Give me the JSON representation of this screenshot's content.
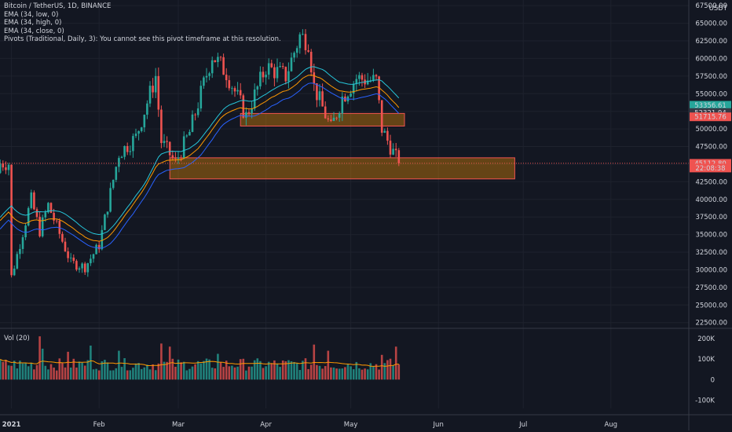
{
  "legend": {
    "title": "Bitcoin / TetherUS, 1D, BINANCE",
    "lines": [
      "EMA (34, low, 0)",
      "EMA (34, high, 0)",
      "EMA (34, close, 0)",
      "Pivots (Traditional, Daily, 3): You cannot see this pivot timeframe at this resolution."
    ]
  },
  "volume_legend": "Vol (20)",
  "colors": {
    "background": "#131722",
    "up": "#26a69a",
    "down": "#ef5350",
    "ema_low": "#2962ff",
    "ema_high": "#26c6da",
    "ema_close": "#ff9800",
    "zone_fill": "#ff9800",
    "zone_border": "#ef5350"
  },
  "chart_data": [
    {
      "type": "candlestick",
      "currency": "USDT",
      "x_ticks": [
        {
          "label": "2021",
          "bold": true
        },
        {
          "label": "Feb"
        },
        {
          "label": "Mar"
        },
        {
          "label": "Apr"
        },
        {
          "label": "May"
        },
        {
          "label": "Jun"
        },
        {
          "label": "Jul"
        },
        {
          "label": "Aug"
        }
      ],
      "y_ticks": [
        22500,
        25000,
        27500,
        30000,
        32500,
        35000,
        37500,
        40000,
        42500,
        45000,
        47500,
        50000,
        52500,
        55000,
        57500,
        60000,
        62500,
        65000,
        67500
      ],
      "y_tick_labels": [
        "22500.00",
        "25000.00",
        "27500.00",
        "30000.00",
        "32500.00",
        "35000.00",
        "37500.00",
        "40000.00",
        "42500.00",
        "45000.00",
        "47500.00",
        "50000.00",
        "52500.00",
        "55000.00",
        "57500.00",
        "60000.00",
        "62500.00",
        "65000.00",
        "67500.00"
      ],
      "ylim": [
        21800,
        68300
      ],
      "price_labels": [
        {
          "text": "53356.61",
          "value": 53356.61,
          "color": "#26a69a"
        },
        {
          "text": "52321.94",
          "value": 52321.94,
          "color": "#363a45"
        },
        {
          "text": "51715.76",
          "value": 51715.76,
          "color": "#ef5350"
        },
        {
          "text": "45112.80",
          "value": 45112.8,
          "color": "#ef5350"
        },
        {
          "text": "22:08:38",
          "value": 44450,
          "color": "#ef5350"
        }
      ],
      "current_price": 45112.8,
      "zones": [
        {
          "x_start": "2021-03-23",
          "x_end": "2021-05-20",
          "top": 52200,
          "bottom": 50400
        },
        {
          "x_start": "2021-02-26",
          "x_end": "2021-06-28",
          "top": 45900,
          "bottom": 42900
        }
      ],
      "anchors": [
        {
          "date": "2021-01-01",
          "value": 29000
        },
        {
          "date": "2021-01-08",
          "value": 40000
        },
        {
          "date": "2021-01-11",
          "value": 35500
        },
        {
          "date": "2021-01-14",
          "value": 39200
        },
        {
          "date": "2021-01-22",
          "value": 31000
        },
        {
          "date": "2021-01-27",
          "value": 30400
        },
        {
          "date": "2021-02-01",
          "value": 33500
        },
        {
          "date": "2021-02-08",
          "value": 46500
        },
        {
          "date": "2021-02-14",
          "value": 48800
        },
        {
          "date": "2021-02-21",
          "value": 57500
        },
        {
          "date": "2021-02-23",
          "value": 48200
        },
        {
          "date": "2021-02-28",
          "value": 45200
        },
        {
          "date": "2021-03-05",
          "value": 49500
        },
        {
          "date": "2021-03-13",
          "value": 60500
        },
        {
          "date": "2021-03-18",
          "value": 58000
        },
        {
          "date": "2021-03-25",
          "value": 51800
        },
        {
          "date": "2021-04-01",
          "value": 58800
        },
        {
          "date": "2021-04-08",
          "value": 57500
        },
        {
          "date": "2021-04-13",
          "value": 63200
        },
        {
          "date": "2021-04-16",
          "value": 62500
        },
        {
          "date": "2021-04-18",
          "value": 56000
        },
        {
          "date": "2021-04-24",
          "value": 50000
        },
        {
          "date": "2021-04-28",
          "value": 54500
        },
        {
          "date": "2021-05-03",
          "value": 57200
        },
        {
          "date": "2021-05-10",
          "value": 56800
        },
        {
          "date": "2021-05-12",
          "value": 50000
        },
        {
          "date": "2021-05-15",
          "value": 47500
        },
        {
          "date": "2021-05-18",
          "value": 45112
        }
      ],
      "volume": {
        "name": "Vol (20)",
        "y_ticks": [
          -100000,
          0,
          100000,
          200000
        ],
        "y_tick_labels": [
          "-100K",
          "0",
          "100K",
          "200K"
        ],
        "ylim": [
          -140000,
          245000
        ],
        "base": 80000,
        "spikes": [
          {
            "date": "2021-01-11",
            "value": 210000
          },
          {
            "date": "2021-01-12",
            "value": 150000
          },
          {
            "date": "2021-01-21",
            "value": 135000
          },
          {
            "date": "2021-01-29",
            "value": 165000
          },
          {
            "date": "2021-02-08",
            "value": 140000
          },
          {
            "date": "2021-02-23",
            "value": 175000
          },
          {
            "date": "2021-02-26",
            "value": 160000
          },
          {
            "date": "2021-03-15",
            "value": 125000
          },
          {
            "date": "2021-04-18",
            "value": 170000
          },
          {
            "date": "2021-04-23",
            "value": 140000
          },
          {
            "date": "2021-05-12",
            "value": 120000
          },
          {
            "date": "2021-05-17",
            "value": 160000
          },
          {
            "date": "2021-05-19",
            "value": 150000
          }
        ]
      }
    }
  ]
}
